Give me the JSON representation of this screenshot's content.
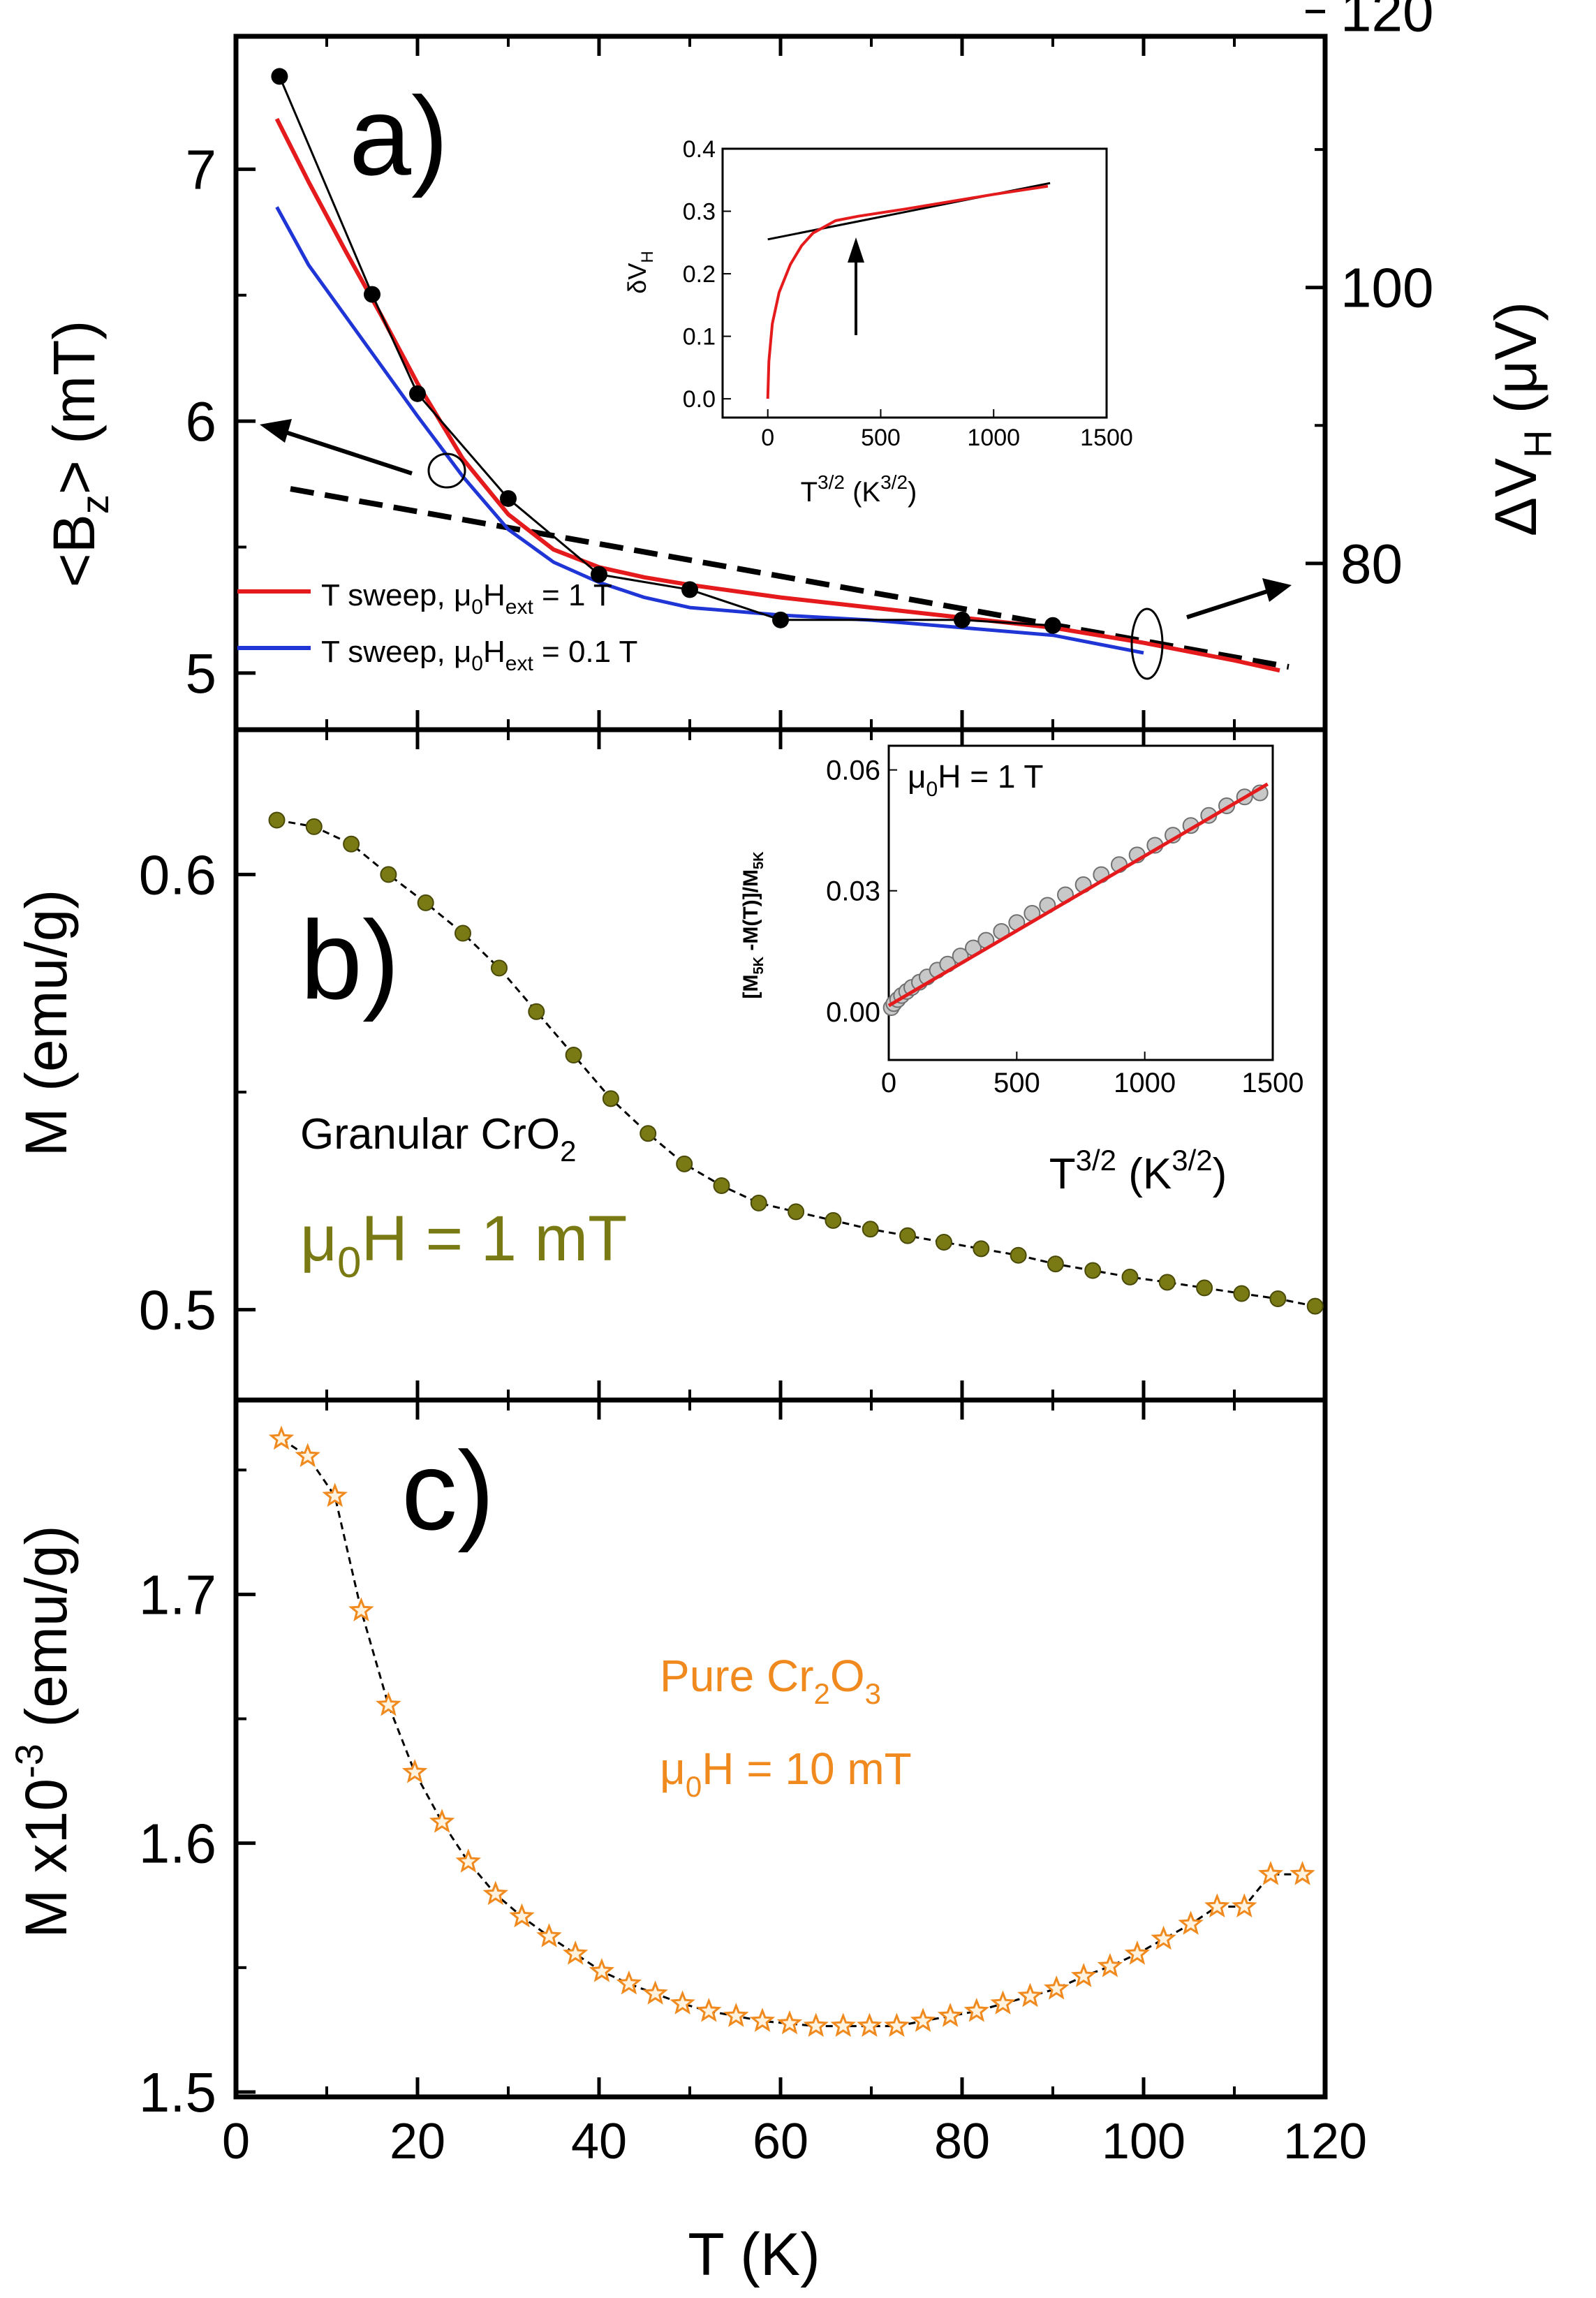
{
  "figure": {
    "xaxis": {
      "label": "T (K)",
      "ticks": [
        "0",
        "20",
        "40",
        "60",
        "80",
        "100",
        "120"
      ],
      "xlim": [
        0,
        120
      ]
    }
  },
  "panels": {
    "a": {
      "letter": "a)",
      "ylabel_left": {
        "main": "<B",
        "sub": "z",
        "tail": "> (mT)"
      },
      "ylabel_right": {
        "main": "ΔV",
        "sub": "H",
        "tail": " (μV)"
      },
      "left_ticks": [
        "5",
        "6",
        "7"
      ],
      "right_ticks": [
        "80",
        "100",
        "120"
      ],
      "legend": [
        {
          "pre": "T sweep, μ",
          "s1": "0",
          "mid": "H",
          "s2": "ext",
          "post": " = 1 T",
          "color": "#e41a1c"
        },
        {
          "pre": "T sweep, μ",
          "s1": "0",
          "mid": "H",
          "s2": "ext",
          "post": " = 0.1 T",
          "color": "#1f35d6"
        }
      ],
      "inset": {
        "ylabel": {
          "main": "δV",
          "sub": "H"
        },
        "xlabel": {
          "main": "T",
          "sup1": "3/2",
          "mid": "  (K",
          "sup2": "3/2",
          "tail": ")"
        },
        "yticks": [
          "0.0",
          "0.1",
          "0.2",
          "0.3",
          "0.4"
        ],
        "xticks": [
          "0",
          "500",
          "1000",
          "1500"
        ]
      }
    },
    "b": {
      "letter": "b)",
      "ylabel": "M (emu/g)",
      "yticks": [
        "0.5",
        "0.6"
      ],
      "sample": {
        "main": "Granular CrO",
        "sub": "2"
      },
      "field": {
        "pre": "μ",
        "sub": "0",
        "post": "H = 1 mT"
      },
      "color": "#7a7a14",
      "inset": {
        "ylabel": {
          "a": "[M",
          "b": "5K",
          "c": " -M(T)]/M",
          "d": "5K"
        },
        "note": {
          "pre": "μ",
          "sub": "0",
          "post": "H = 1 T"
        },
        "xlabel": {
          "main": "T",
          "sup1": "3/2",
          "mid": "  (K",
          "sup2": "3/2",
          "tail": ")"
        },
        "yticks": [
          "0.00",
          "0.03",
          "0.06"
        ],
        "xticks": [
          "0",
          "500",
          "1000",
          "1500"
        ]
      }
    },
    "c": {
      "letter": "c)",
      "ylabel": {
        "pre": "M x10",
        "sup": "-3",
        "post": " (emu/g)"
      },
      "yticks": [
        "1.5",
        "1.6",
        "1.7"
      ],
      "sample": {
        "pre": "Pure Cr",
        "s1": "2",
        "mid": "O",
        "s2": "3"
      },
      "field": {
        "pre": "μ",
        "sub": "0",
        "post": "H = 10 mT"
      },
      "color": "#f08a1e"
    }
  },
  "chart_data": [
    {
      "type": "line",
      "panel": "a",
      "xlabel": "T (K)",
      "ylabel": "<Bz> (mT)",
      "ylabel_right": "ΔVH (μV)",
      "xlim": [
        0,
        120
      ],
      "ylim": [
        4.8,
        7.5
      ],
      "ylim_right": [
        68.4,
        117.7
      ],
      "series": [
        {
          "name": "T sweep, μ0Hext = 1 T",
          "color": "#e41a1c",
          "axis": "left",
          "x": [
            4.5,
            8,
            12,
            16,
            20,
            25,
            30,
            35,
            40,
            45,
            50,
            60,
            70,
            80,
            90,
            100,
            110,
            115
          ],
          "y": [
            7.2,
            6.95,
            6.68,
            6.42,
            6.15,
            5.85,
            5.63,
            5.49,
            5.42,
            5.38,
            5.35,
            5.3,
            5.26,
            5.22,
            5.18,
            5.12,
            5.05,
            5.01
          ]
        },
        {
          "name": "T sweep, μ0Hext = 0.1 T",
          "color": "#1f35d6",
          "axis": "left",
          "x": [
            4.5,
            8,
            12,
            16,
            20,
            25,
            30,
            35,
            40,
            45,
            50,
            60,
            70,
            80,
            90,
            100
          ],
          "y": [
            6.85,
            6.62,
            6.42,
            6.22,
            6.02,
            5.78,
            5.57,
            5.44,
            5.36,
            5.3,
            5.26,
            5.23,
            5.21,
            5.18,
            5.15,
            5.08
          ]
        },
        {
          "name": "ΔVH",
          "color": "#000000",
          "axis": "right",
          "marker": "circle",
          "x": [
            4.8,
            15,
            20,
            30,
            40,
            50,
            60,
            80,
            90
          ],
          "y": [
            115.3,
            99.5,
            92.3,
            84.7,
            79.2,
            78.1,
            75.9,
            75.9,
            75.5
          ]
        },
        {
          "name": "linear fit",
          "color": "#000000",
          "axis": "right",
          "style": "dashed",
          "x": [
            6,
            116
          ],
          "y": [
            85.4,
            72.5
          ]
        }
      ],
      "inset": {
        "type": "line",
        "xlabel": "T^3/2 (K^3/2)",
        "ylabel": "δVH",
        "xlim": [
          -200,
          1500
        ],
        "ylim": [
          -0.03,
          0.4
        ],
        "series": [
          {
            "name": "data",
            "color": "#e41a1c",
            "x": [
              0,
              5,
              20,
              50,
              100,
              150,
              200,
              300,
              400,
              600,
              800,
              1000,
              1240
            ],
            "y": [
              0.0,
              0.06,
              0.12,
              0.17,
              0.215,
              0.245,
              0.265,
              0.285,
              0.292,
              0.303,
              0.315,
              0.327,
              0.34
            ]
          },
          {
            "name": "fit",
            "color": "#000000",
            "x": [
              0,
              1250
            ],
            "y": [
              0.255,
              0.345
            ]
          }
        ]
      }
    },
    {
      "type": "scatter",
      "panel": "b",
      "xlabel": "T (K)",
      "ylabel": "M (emu/g)",
      "xlim": [
        0,
        120
      ],
      "ylim": [
        0.481,
        0.632
      ],
      "series": [
        {
          "name": "Granular CrO2, μ0H = 1 mT",
          "color": "#7a7a14",
          "x": [
            4.5,
            8.6,
            12.7,
            16.8,
            20.9,
            25,
            29,
            33.1,
            37.2,
            41.3,
            45.4,
            49.4,
            53.5,
            57.6,
            61.7,
            65.8,
            69.9,
            74,
            78,
            82.1,
            86.2,
            90.3,
            94.4,
            98.5,
            102.6,
            106.7,
            110.8,
            114.8,
            118.9
          ],
          "y": [
            0.6125,
            0.611,
            0.607,
            0.6,
            0.5935,
            0.5865,
            0.5785,
            0.5685,
            0.5585,
            0.5485,
            0.5405,
            0.5335,
            0.5285,
            0.5245,
            0.5225,
            0.5205,
            0.5185,
            0.517,
            0.5155,
            0.514,
            0.5125,
            0.5105,
            0.509,
            0.5075,
            0.5063,
            0.505,
            0.5037,
            0.5025,
            0.5008
          ]
        }
      ],
      "inset": {
        "type": "scatter",
        "xlabel": "T^3/2 (K^3/2)",
        "ylabel": "[M5K -M(T)]/M5K",
        "note": "μ0H = 1 T",
        "xlim": [
          0,
          1500
        ],
        "ylim": [
          -0.012,
          0.066
        ],
        "series": [
          {
            "name": "data",
            "color": "#8c8c8c",
            "x": [
              10,
              20,
              35,
              50,
              70,
              90,
              120,
              150,
              190,
              230,
              280,
              330,
              380,
              440,
              500,
              560,
              620,
              690,
              760,
              830,
              900,
              970,
              1040,
              1110,
              1180,
              1250,
              1320,
              1390,
              1450
            ],
            "y": [
              0.001,
              0.002,
              0.003,
              0.004,
              0.005,
              0.006,
              0.0073,
              0.0086,
              0.0103,
              0.0118,
              0.0138,
              0.0158,
              0.0177,
              0.0199,
              0.0221,
              0.0244,
              0.0264,
              0.029,
              0.0315,
              0.034,
              0.0365,
              0.0389,
              0.0413,
              0.0438,
              0.0462,
              0.0487,
              0.0511,
              0.0533,
              0.0543
            ]
          },
          {
            "name": "linear fit",
            "color": "#e41a1c",
            "x": [
              0,
              1480
            ],
            "y": [
              0.0015,
              0.0565
            ]
          }
        ]
      }
    },
    {
      "type": "scatter",
      "panel": "c",
      "xlabel": "T (K)",
      "ylabel": "M x10^-3 (emu/g)",
      "xlim": [
        0,
        120
      ],
      "ylim": [
        1.5,
        1.777
      ],
      "series": [
        {
          "name": "Pure Cr2O3, μ0H = 10 mT",
          "color": "#f08a1e",
          "marker": "star",
          "x": [
            5,
            7.9,
            10.9,
            13.8,
            16.8,
            19.7,
            22.7,
            25.6,
            28.6,
            31.5,
            34.5,
            37.4,
            40.3,
            43.3,
            46.2,
            49.2,
            52.1,
            55.1,
            58,
            61,
            63.9,
            66.9,
            69.8,
            72.8,
            75.7,
            78.7,
            81.6,
            84.5,
            87.5,
            90.4,
            93.4,
            96.3,
            99.3,
            102.2,
            105.2,
            108.1,
            111.1,
            114,
            117.5
          ],
          "y": [
            1.7625,
            1.7555,
            1.7395,
            1.6935,
            1.6555,
            1.6285,
            1.6085,
            1.5925,
            1.5795,
            1.5705,
            1.5625,
            1.5555,
            1.5485,
            1.5435,
            1.5395,
            1.5355,
            1.5325,
            1.5305,
            1.5285,
            1.5275,
            1.5265,
            1.5265,
            1.5265,
            1.5265,
            1.5285,
            1.5305,
            1.5325,
            1.5355,
            1.5385,
            1.5415,
            1.5465,
            1.5505,
            1.5555,
            1.5615,
            1.5675,
            1.5745,
            1.5745,
            1.5875,
            1.5875
          ]
        }
      ]
    }
  ]
}
